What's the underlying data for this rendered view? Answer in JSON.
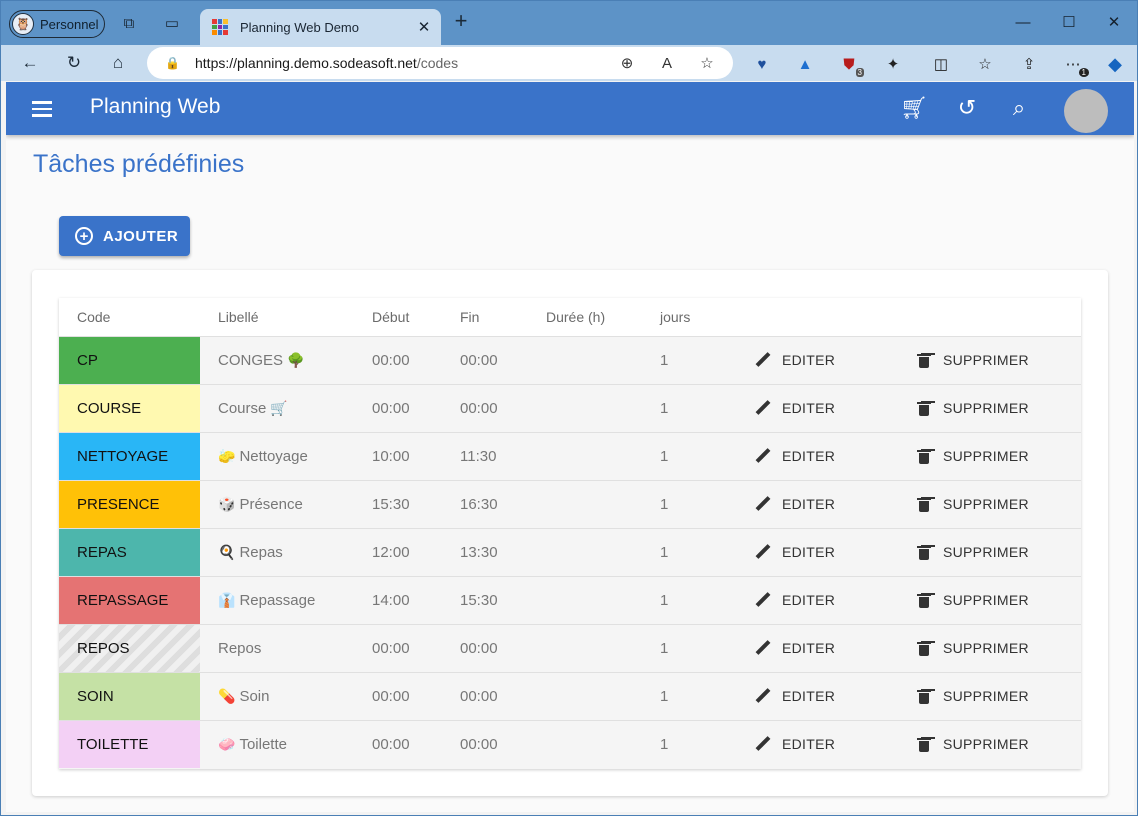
{
  "browser": {
    "profile_label": "Personnel",
    "tab_title": "Planning Web Demo",
    "url_host": "https://planning.demo.sodeasoft.net",
    "url_path": "/codes",
    "extension_badge_count": "3",
    "menu_badge_count": "1"
  },
  "app": {
    "title": "Planning Web",
    "page_title": "Tâches prédéfinies",
    "add_button_label": "AJOUTER",
    "accent_color": "#3a73c9"
  },
  "table": {
    "headers": {
      "code": "Code",
      "libelle": "Libellé",
      "debut": "Début",
      "fin": "Fin",
      "duree": "Durée (h)",
      "jours": "jours"
    },
    "edit_label": "EDITER",
    "delete_label": "SUPPRIMER",
    "rows": [
      {
        "code": "CP",
        "color": "#4caf50",
        "emoji": "",
        "label": "CONGES",
        "emoji_after": "🌳",
        "debut": "00:00",
        "fin": "00:00",
        "duree": "",
        "jours": "1"
      },
      {
        "code": "COURSE",
        "color": "#fff9b0",
        "emoji": "",
        "label": "Course",
        "emoji_after": "🛒",
        "debut": "00:00",
        "fin": "00:00",
        "duree": "",
        "jours": "1"
      },
      {
        "code": "NETTOYAGE",
        "color": "#29b6f6",
        "emoji": "🧽",
        "label": "Nettoyage",
        "emoji_after": "",
        "debut": "10:00",
        "fin": "11:30",
        "duree": "",
        "jours": "1"
      },
      {
        "code": "PRESENCE",
        "color": "#ffc107",
        "emoji": "🎲",
        "label": "Présence",
        "emoji_after": "",
        "debut": "15:30",
        "fin": "16:30",
        "duree": "",
        "jours": "1"
      },
      {
        "code": "REPAS",
        "color": "#4db6ac",
        "emoji": "🍳",
        "label": "Repas",
        "emoji_after": "",
        "debut": "12:00",
        "fin": "13:30",
        "duree": "",
        "jours": "1"
      },
      {
        "code": "REPASSAGE",
        "color": "#e57373",
        "emoji": "👔",
        "label": "Repassage",
        "emoji_after": "",
        "debut": "14:00",
        "fin": "15:30",
        "duree": "",
        "jours": "1"
      },
      {
        "code": "REPOS",
        "color": "striped",
        "emoji": "",
        "label": "Repos",
        "emoji_after": "",
        "debut": "00:00",
        "fin": "00:00",
        "duree": "",
        "jours": "1"
      },
      {
        "code": "SOIN",
        "color": "#c5e1a5",
        "emoji": "💊",
        "label": "Soin",
        "emoji_after": "",
        "debut": "00:00",
        "fin": "00:00",
        "duree": "",
        "jours": "1"
      },
      {
        "code": "TOILETTE",
        "color": "#f3d0f5",
        "emoji": "🧼",
        "label": "Toilette",
        "emoji_after": "",
        "debut": "00:00",
        "fin": "00:00",
        "duree": "",
        "jours": "1"
      }
    ]
  }
}
